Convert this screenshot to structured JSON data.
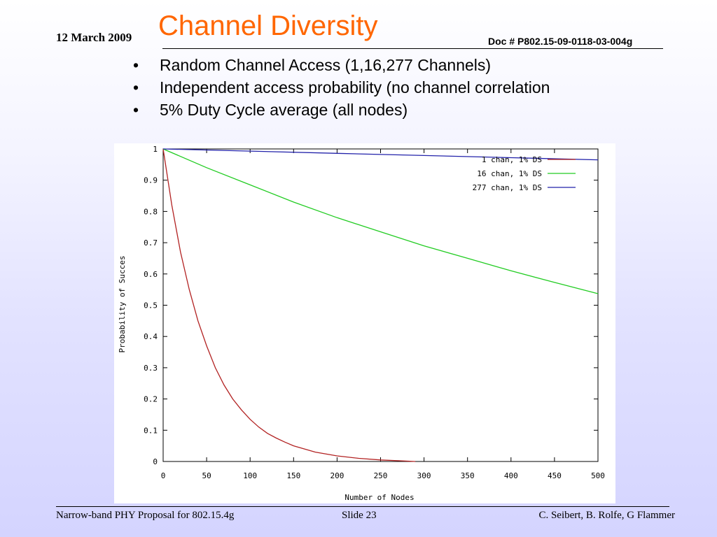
{
  "header": {
    "date": "12 March 2009",
    "doc_number": "Doc # P802.15-09-0118-03-004g"
  },
  "slide": {
    "title": "Channel Diversity",
    "bullets": [
      "Random Channel Access (1,16,277 Channels)",
      "Independent access probability (no channel correlation",
      "5% Duty Cycle average (all nodes)"
    ]
  },
  "footer": {
    "left": "Narrow-band PHY Proposal for 802.15.4g",
    "center": "Slide 23",
    "right": "C. Seibert, B. Rolfe, G Flammer"
  },
  "colors": {
    "title": "#ff6600",
    "series_1chan": "#b22222",
    "series_16chan": "#22cc22",
    "series_277chan": "#2222aa"
  },
  "chart_data": {
    "type": "line",
    "title": "",
    "xlabel": "Number of Nodes",
    "ylabel": "Probability of Succes",
    "xlim": [
      0,
      500
    ],
    "ylim": [
      0,
      1
    ],
    "xticks": [
      "0",
      "50",
      "100",
      "150",
      "200",
      "250",
      "300",
      "350",
      "400",
      "450",
      "500"
    ],
    "yticks": [
      "0",
      "0.1",
      "0.2",
      "0.3",
      "0.4",
      "0.5",
      "0.6",
      "0.7",
      "0.8",
      "0.9",
      "1"
    ],
    "legend_position": "top-right",
    "grid": false,
    "series": [
      {
        "name": "1 chan, 1% DS",
        "color": "#b22222",
        "x": [
          0,
          10,
          20,
          30,
          40,
          50,
          60,
          70,
          80,
          90,
          100,
          110,
          120,
          130,
          140,
          150,
          175,
          200,
          225,
          250,
          275,
          290
        ],
        "y": [
          1.0,
          0.82,
          0.67,
          0.55,
          0.45,
          0.37,
          0.3,
          0.245,
          0.2,
          0.165,
          0.135,
          0.11,
          0.09,
          0.075,
          0.062,
          0.05,
          0.03,
          0.018,
          0.01,
          0.005,
          0.002,
          0.0
        ]
      },
      {
        "name": "16 chan, 1% DS",
        "color": "#22cc22",
        "x": [
          0,
          50,
          100,
          150,
          200,
          250,
          300,
          350,
          400,
          450,
          500
        ],
        "y": [
          1.0,
          0.94,
          0.885,
          0.83,
          0.78,
          0.735,
          0.69,
          0.65,
          0.61,
          0.573,
          0.537
        ]
      },
      {
        "name": "277 chan, 1% DS",
        "color": "#2222aa",
        "x": [
          0,
          100,
          200,
          300,
          400,
          500
        ],
        "y": [
          1.0,
          0.993,
          0.986,
          0.979,
          0.972,
          0.965
        ]
      }
    ]
  }
}
